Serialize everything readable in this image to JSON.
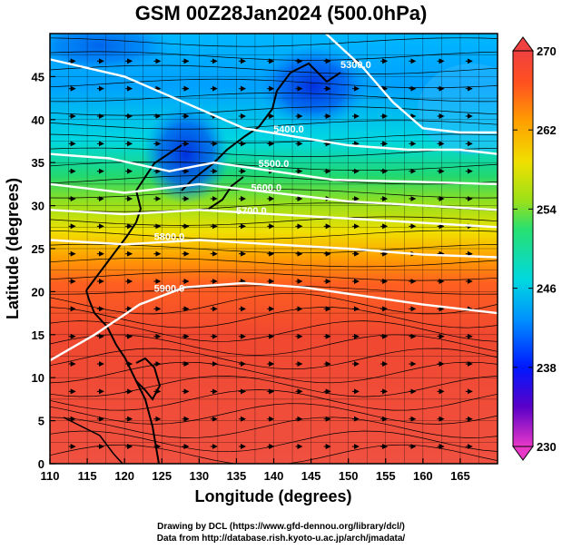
{
  "title": "GSM 00Z28Jan2024 (500.0hPa)",
  "credits": {
    "line1": "Drawing by DCL (https://www.gfd-dennou.org/library/dcl/)",
    "line2": "Data from http://database.rish.kyoto-u.ac.jp/arch/jmadata/"
  },
  "chart_data": {
    "type": "heatmap",
    "description_vars": "500 hPa temperature (shaded, K), geopotential height contours (white), streamlines",
    "xlabel": "Longitude (degrees)",
    "ylabel": "Latitude  (degrees)",
    "xlim": [
      110,
      170
    ],
    "ylim": [
      0,
      50
    ],
    "xticks": [
      "110",
      "115",
      "120",
      "125",
      "130",
      "135",
      "140",
      "145",
      "150",
      "155",
      "160",
      "165"
    ],
    "yticks": [
      "0",
      "5",
      "10",
      "15",
      "20",
      "25",
      "30",
      "35",
      "40",
      "45"
    ],
    "colorbar": {
      "min": 230,
      "max": 270,
      "ticks": [
        "230",
        "238",
        "246",
        "254",
        "262",
        "270"
      ],
      "colors": [
        "#e838c8",
        "#5a00c8",
        "#0018ff",
        "#0090ff",
        "#00d8e0",
        "#28e070",
        "#9ae018",
        "#f0e000",
        "#ffa000",
        "#ff5020",
        "#f04040"
      ]
    },
    "contours": [
      {
        "label": "5300.0",
        "points": [
          [
            147,
            50
          ],
          [
            152,
            46
          ],
          [
            156,
            42
          ],
          [
            160,
            39
          ],
          [
            165,
            38.5
          ],
          [
            170,
            38.5
          ]
        ],
        "label_at": [
          151,
          46
        ]
      },
      {
        "label": "5400.0",
        "points": [
          [
            110,
            47
          ],
          [
            120,
            45
          ],
          [
            128,
            42
          ],
          [
            136,
            39
          ],
          [
            143,
            38
          ],
          [
            150,
            37
          ],
          [
            158,
            36.5
          ],
          [
            165,
            36.5
          ],
          [
            170,
            36
          ]
        ]
      },
      {
        "label": "5400.0",
        "label_at": [
          142,
          38.5
        ]
      },
      {
        "label": "5500.0",
        "points": [
          [
            110,
            36
          ],
          [
            118,
            35.5
          ],
          [
            126,
            34
          ],
          [
            132,
            35
          ],
          [
            140,
            34
          ],
          [
            148,
            33
          ],
          [
            158,
            32.8
          ],
          [
            170,
            32.5
          ]
        ],
        "label_at": [
          140,
          34.5
        ]
      },
      {
        "label": "5600.0",
        "points": [
          [
            110,
            32.5
          ],
          [
            120,
            31.5
          ],
          [
            130,
            32.5
          ],
          [
            140,
            31.5
          ],
          [
            150,
            30.5
          ],
          [
            160,
            30
          ],
          [
            170,
            29.5
          ]
        ],
        "label_at": [
          139,
          31.7
        ]
      },
      {
        "label": "5700.0",
        "points": [
          [
            110,
            29.5
          ],
          [
            120,
            29
          ],
          [
            130,
            29.5
          ],
          [
            140,
            29
          ],
          [
            150,
            28.5
          ],
          [
            160,
            28
          ],
          [
            170,
            27.5
          ]
        ],
        "label_at": [
          137,
          29
        ]
      },
      {
        "label": "5800.0",
        "points": [
          [
            110,
            26
          ],
          [
            120,
            25.5
          ],
          [
            130,
            26
          ],
          [
            140,
            25.5
          ],
          [
            150,
            25
          ],
          [
            160,
            24.3
          ],
          [
            170,
            24
          ]
        ],
        "label_at": [
          126,
          26
        ]
      },
      {
        "label": "5900.0",
        "points": [
          [
            110,
            12
          ],
          [
            116,
            15
          ],
          [
            122,
            18.5
          ],
          [
            128,
            20.5
          ],
          [
            136,
            21
          ],
          [
            144,
            20.5
          ],
          [
            152,
            19.5
          ],
          [
            160,
            18.5
          ],
          [
            170,
            17.5
          ]
        ],
        "label_at": [
          126,
          20
        ]
      }
    ]
  }
}
